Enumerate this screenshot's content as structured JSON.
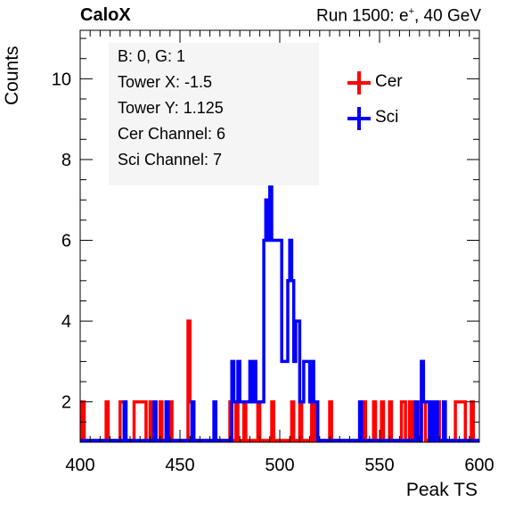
{
  "header": {
    "experiment": "CaloX",
    "run_prefix": "Run 1500: e",
    "run_charge": "+",
    "run_suffix": ", 40 GeV"
  },
  "info": {
    "board": "B: 0, G: 1",
    "tower_x": "Tower X: -1.5",
    "tower_y": "Tower Y: 1.125",
    "cer_channel": "Cer Channel: 6",
    "sci_channel": "Sci Channel: 7"
  },
  "legend": [
    {
      "label": "Cer",
      "color": "#ff0000"
    },
    {
      "label": "Sci",
      "color": "#0000ff"
    }
  ],
  "chart_data": {
    "type": "line",
    "subtype": "step-histogram",
    "xlabel": "Peak TS",
    "ylabel": "Counts",
    "xlim": [
      400,
      600
    ],
    "ylim": [
      1,
      11.2
    ],
    "xticks": [
      400,
      450,
      500,
      550,
      600
    ],
    "yticks": [
      2,
      4,
      6,
      8,
      10
    ],
    "grid": false,
    "legend_position": "top-right",
    "series": [
      {
        "name": "Cer",
        "color": "#ff0000",
        "values": [
          [
            401,
            2
          ],
          [
            413,
            2
          ],
          [
            420,
            2
          ],
          [
            421,
            2
          ],
          [
            427,
            2
          ],
          [
            428,
            2
          ],
          [
            429,
            2
          ],
          [
            430,
            2
          ],
          [
            431,
            2
          ],
          [
            432,
            2
          ],
          [
            435,
            2
          ],
          [
            440,
            2
          ],
          [
            445,
            2
          ],
          [
            454,
            4
          ],
          [
            455,
            2
          ],
          [
            475,
            2
          ],
          [
            478,
            2
          ],
          [
            482,
            2
          ],
          [
            489,
            2
          ],
          [
            496,
            2
          ],
          [
            506,
            2
          ],
          [
            510,
            2
          ],
          [
            516,
            2
          ],
          [
            518,
            2
          ],
          [
            525,
            2
          ],
          [
            542,
            2
          ],
          [
            547,
            2
          ],
          [
            551,
            2
          ],
          [
            555,
            2
          ],
          [
            561,
            2
          ],
          [
            562,
            2
          ],
          [
            565,
            2
          ],
          [
            567,
            2
          ],
          [
            569,
            2
          ],
          [
            571,
            3
          ],
          [
            572,
            2
          ],
          [
            575,
            2
          ],
          [
            576,
            2
          ],
          [
            579,
            2
          ],
          [
            588,
            2
          ],
          [
            589,
            2
          ],
          [
            590,
            2
          ],
          [
            591,
            2
          ],
          [
            592,
            2
          ],
          [
            596,
            2
          ],
          [
            600,
            2
          ]
        ]
      },
      {
        "name": "Sci",
        "color": "#0000ff",
        "values": [
          [
            422,
            2
          ],
          [
            437,
            2
          ],
          [
            443,
            2
          ],
          [
            456,
            2
          ],
          [
            467,
            2
          ],
          [
            476,
            3
          ],
          [
            477,
            2
          ],
          [
            478,
            2
          ],
          [
            479,
            3
          ],
          [
            480,
            2
          ],
          [
            481,
            2
          ],
          [
            482,
            2
          ],
          [
            483,
            2
          ],
          [
            484,
            2
          ],
          [
            485,
            3
          ],
          [
            486,
            2
          ],
          [
            487,
            3
          ],
          [
            488,
            2
          ],
          [
            489,
            2
          ],
          [
            490,
            2
          ],
          [
            491,
            2
          ],
          [
            492,
            6
          ],
          [
            493,
            7
          ],
          [
            494,
            6
          ],
          [
            495,
            8
          ],
          [
            496,
            6
          ],
          [
            497,
            6
          ],
          [
            498,
            6
          ],
          [
            499,
            6
          ],
          [
            500,
            6
          ],
          [
            501,
            3
          ],
          [
            502,
            3
          ],
          [
            503,
            3
          ],
          [
            504,
            5
          ],
          [
            505,
            6
          ],
          [
            506,
            5
          ],
          [
            507,
            3
          ],
          [
            508,
            4
          ],
          [
            509,
            4
          ],
          [
            510,
            2
          ],
          [
            511,
            2
          ],
          [
            512,
            3
          ],
          [
            513,
            3
          ],
          [
            514,
            3
          ],
          [
            515,
            2
          ],
          [
            516,
            3
          ],
          [
            517,
            2
          ],
          [
            518,
            2
          ],
          [
            540,
            2
          ],
          [
            568,
            2
          ],
          [
            571,
            3
          ],
          [
            572,
            2
          ],
          [
            573,
            2
          ],
          [
            574,
            2
          ],
          [
            576,
            2
          ],
          [
            578,
            2
          ],
          [
            582,
            2
          ]
        ]
      }
    ]
  }
}
